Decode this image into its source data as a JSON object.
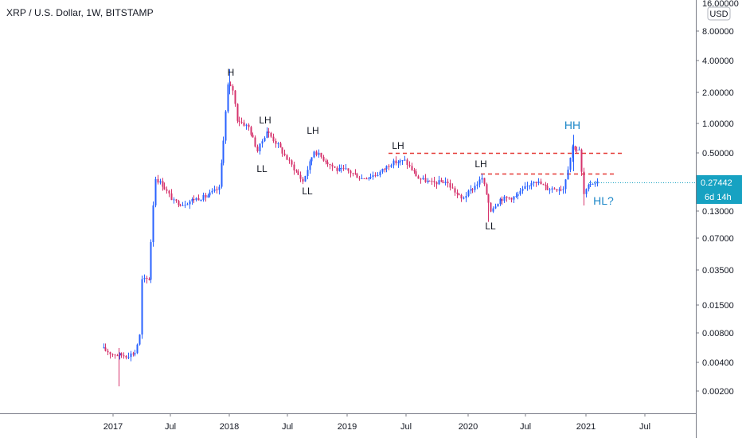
{
  "header": {
    "symbol_title": "XRP / U.S. Dollar, 1W, BITSTAMP"
  },
  "colors": {
    "up": "#2962ff",
    "down": "#d6336c",
    "annotation_blue": "#1e88c8",
    "resistance_line": "#e53935",
    "axis_text": "#131722",
    "price_tag_bg": "#17a2c2"
  },
  "price_scale": {
    "currency": "USD",
    "top_label": "16.00000",
    "ticks": [
      "8.00000",
      "4.00000",
      "2.00000",
      "1.00000",
      "0.50000",
      "0.13000",
      "0.07000",
      "0.03500",
      "0.01500",
      "0.00800",
      "0.00400",
      "0.00200"
    ],
    "current_price": "0.27442",
    "countdown": "6d 14h",
    "log_scale": true
  },
  "time_scale": {
    "ticks": [
      "2017",
      "Jul",
      "2018",
      "Jul",
      "2019",
      "Jul",
      "2020",
      "Jul",
      "2021",
      "Jul"
    ]
  },
  "annotations": [
    {
      "text": "H",
      "color": "dark"
    },
    {
      "text": "LH",
      "color": "dark"
    },
    {
      "text": "LL",
      "color": "dark"
    },
    {
      "text": "LH",
      "color": "dark"
    },
    {
      "text": "LL",
      "color": "dark"
    },
    {
      "text": "LH",
      "color": "dark"
    },
    {
      "text": "LH",
      "color": "dark"
    },
    {
      "text": "LL",
      "color": "dark"
    },
    {
      "text": "HH",
      "color": "blue"
    },
    {
      "text": "HL?",
      "color": "blue"
    }
  ],
  "chart_data": {
    "type": "candlestick",
    "title": "XRP / U.S. Dollar, 1W, BITSTAMP",
    "y_scale": "log",
    "y_range": [
      0.0014,
      16.0
    ],
    "x_range": [
      "2016-11",
      "2021-12"
    ],
    "resistance_levels": [
      0.52,
      0.33
    ],
    "price_path": [
      [
        "2016-11-28",
        0.0072
      ],
      [
        "2017-01-02",
        0.0063
      ],
      [
        "2017-02-13",
        0.0061
      ],
      [
        "2017-03-13",
        0.0065
      ],
      [
        "2017-03-27",
        0.0095
      ],
      [
        "2017-04-03",
        0.032
      ],
      [
        "2017-04-24",
        0.033
      ],
      [
        "2017-05-08",
        0.17
      ],
      [
        "2017-05-15",
        0.3
      ],
      [
        "2017-06-05",
        0.26
      ],
      [
        "2017-07-10",
        0.18
      ],
      [
        "2017-08-07",
        0.17
      ],
      [
        "2017-09-11",
        0.19
      ],
      [
        "2017-10-16",
        0.2
      ],
      [
        "2017-11-27",
        0.24
      ],
      [
        "2017-12-11",
        0.72
      ],
      [
        "2017-12-25",
        2.3
      ],
      [
        "2018-01-08",
        2.1
      ],
      [
        "2018-01-22",
        1.1
      ],
      [
        "2018-02-26",
        0.92
      ],
      [
        "2018-03-26",
        0.55
      ],
      [
        "2018-04-23",
        0.85
      ],
      [
        "2018-05-28",
        0.62
      ],
      [
        "2018-06-25",
        0.46
      ],
      [
        "2018-08-13",
        0.28
      ],
      [
        "2018-09-17",
        0.55
      ],
      [
        "2018-10-15",
        0.46
      ],
      [
        "2018-11-26",
        0.36
      ],
      [
        "2018-12-24",
        0.36
      ],
      [
        "2019-02-11",
        0.3
      ],
      [
        "2019-04-01",
        0.33
      ],
      [
        "2019-05-13",
        0.42
      ],
      [
        "2019-06-24",
        0.44
      ],
      [
        "2019-08-05",
        0.3
      ],
      [
        "2019-09-16",
        0.27
      ],
      [
        "2019-10-28",
        0.28
      ],
      [
        "2019-12-16",
        0.19
      ],
      [
        "2020-01-20",
        0.24
      ],
      [
        "2020-02-17",
        0.3
      ],
      [
        "2020-03-16",
        0.15
      ],
      [
        "2020-04-13",
        0.19
      ],
      [
        "2020-06-01",
        0.2
      ],
      [
        "2020-07-27",
        0.29
      ],
      [
        "2020-09-07",
        0.24
      ],
      [
        "2020-10-26",
        0.24
      ],
      [
        "2020-11-23",
        0.6
      ],
      [
        "2020-12-14",
        0.55
      ],
      [
        "2020-12-28",
        0.21
      ],
      [
        "2021-01-18",
        0.27
      ],
      [
        "2021-02-01",
        0.27442
      ]
    ]
  }
}
